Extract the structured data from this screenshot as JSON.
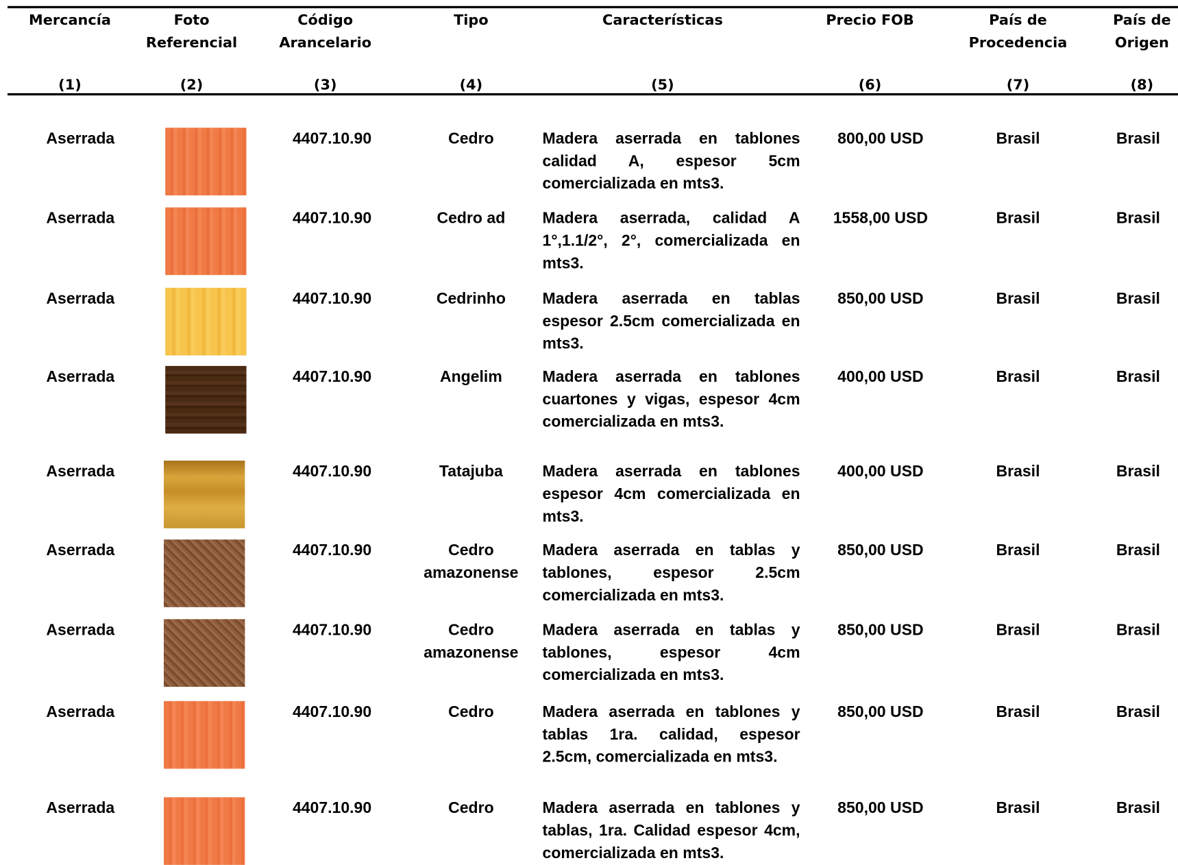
{
  "table": {
    "columns": [
      {
        "title_lines": [
          "Mercancía"
        ],
        "number": "(1)"
      },
      {
        "title_lines": [
          "Foto",
          "Referencial"
        ],
        "number": "(2)"
      },
      {
        "title_lines": [
          "Código",
          "Arancelario"
        ],
        "number": "(3)"
      },
      {
        "title_lines": [
          "Tipo"
        ],
        "number": "(4)"
      },
      {
        "title_lines": [
          "Características"
        ],
        "number": "(5)"
      },
      {
        "title_lines": [
          "Precio FOB"
        ],
        "number": "(6)"
      },
      {
        "title_lines": [
          "País de",
          "Procedencia"
        ],
        "number": "(7)"
      },
      {
        "title_lines": [
          "País de",
          "Origen"
        ],
        "number": "(8)"
      }
    ],
    "rows": [
      {
        "mercancia": "Aserrada",
        "codigo": "4407.10.90",
        "tipo": "Cedro",
        "caracteristicas": "Madera aserrada en tablones calidad A, espesor 5cm comercializada en mts3.",
        "precio": "800,00 USD",
        "procedencia": "Brasil",
        "origen": "Brasil"
      },
      {
        "mercancia": "Aserrada",
        "codigo": "4407.10.90",
        "tipo": "Cedro ad",
        "caracteristicas": "Madera aserrada, calidad A 1°,1.1/2°, 2°, comercializada en mts3.",
        "precio": "1558,00 USD",
        "procedencia": "Brasil",
        "origen": "Brasil"
      },
      {
        "mercancia": "Aserrada",
        "codigo": "4407.10.90",
        "tipo": "Cedrinho",
        "caracteristicas": "Madera aserrada en tablas espesor 2.5cm comercializada en mts3.",
        "precio": "850,00 USD",
        "procedencia": "Brasil",
        "origen": "Brasil"
      },
      {
        "mercancia": "Aserrada",
        "codigo": "4407.10.90",
        "tipo": "Angelim",
        "caracteristicas": "Madera aserrada en tablones cuartones y vigas, espesor 4cm comercializada en mts3.",
        "precio": "400,00 USD",
        "procedencia": "Brasil",
        "origen": "Brasil"
      },
      {
        "mercancia": "Aserrada",
        "codigo": "4407.10.90",
        "tipo": "Tatajuba",
        "caracteristicas": "Madera aserrada en tablones espesor 4cm comercializada en mts3.",
        "precio": "400,00 USD",
        "procedencia": "Brasil",
        "origen": "Brasil"
      },
      {
        "mercancia": "Aserrada",
        "codigo": "4407.10.90",
        "tipo": "Cedro amazonense",
        "caracteristicas": "Madera aserrada en tablas y tablones, espesor 2.5cm comercializada en mts3.",
        "precio": "850,00 USD",
        "procedencia": "Brasil",
        "origen": "Brasil"
      },
      {
        "mercancia": "Aserrada",
        "codigo": "4407.10.90",
        "tipo": "Cedro amazonense",
        "caracteristicas": "Madera aserrada en tablas y tablones, espesor 4cm comercializada en mts3.",
        "precio": "850,00 USD",
        "procedencia": "Brasil",
        "origen": "Brasil"
      },
      {
        "mercancia": "Aserrada",
        "codigo": "4407.10.90",
        "tipo": "Cedro",
        "caracteristicas": "Madera aserrada en tablones y tablas 1ra. calidad, espesor 2.5cm, comercializada en mts3.",
        "precio": "850,00 USD",
        "procedencia": "Brasil",
        "origen": "Brasil"
      },
      {
        "mercancia": "Aserrada",
        "codigo": "4407.10.90",
        "tipo": "Cedro",
        "caracteristicas": "Madera aserrada en tablones y tablas, 1ra. Calidad espesor 4cm, comercializada en mts3.",
        "precio": "850,00 USD",
        "procedencia": "Brasil",
        "origen": "Brasil"
      }
    ]
  }
}
